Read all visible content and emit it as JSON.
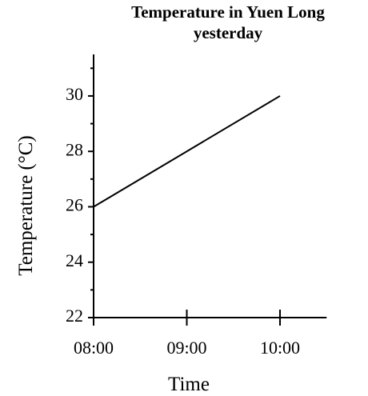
{
  "chart_data": {
    "type": "line",
    "title": "Temperature in Yuen Long yesterday",
    "xlabel": "Time",
    "ylabel": "Temperature (°C)",
    "categories": [
      "08:00",
      "09:00",
      "10:00"
    ],
    "series": [
      {
        "name": "Temperature",
        "color": "#000000",
        "values": [
          26,
          28,
          30
        ]
      }
    ],
    "ylim": [
      22,
      31.5
    ],
    "yticks": [
      22,
      24,
      26,
      28,
      30
    ],
    "yminorticks": [
      23,
      25,
      27,
      29,
      31
    ],
    "grid": false
  }
}
